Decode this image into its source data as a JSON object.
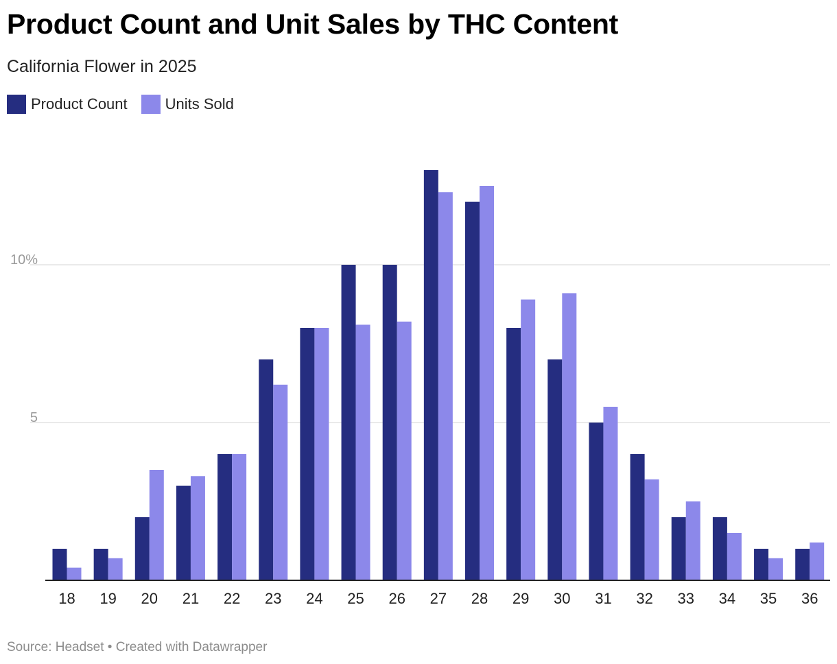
{
  "header": {
    "title": "Product Count and Unit Sales by THC Content",
    "subtitle": "California Flower in 2025"
  },
  "legend": [
    {
      "label": "Product Count",
      "color": "#252d80"
    },
    {
      "label": "Units Sold",
      "color": "#8c88ea"
    }
  ],
  "footer": {
    "source": "Source: Headset • Created with Datawrapper"
  },
  "chart_data": {
    "type": "bar",
    "title": "Product Count and Unit Sales by THC Content",
    "subtitle": "California Flower in 2025",
    "xlabel": "",
    "ylabel": "",
    "categories": [
      "18",
      "19",
      "20",
      "21",
      "22",
      "23",
      "24",
      "25",
      "26",
      "27",
      "28",
      "29",
      "30",
      "31",
      "32",
      "33",
      "34",
      "35",
      "36"
    ],
    "series": [
      {
        "name": "Product Count",
        "color": "#252d80",
        "values": [
          1,
          1,
          2,
          3,
          4,
          7,
          8,
          10,
          10,
          13,
          12,
          8,
          7,
          5,
          4,
          2,
          2,
          1,
          1
        ]
      },
      {
        "name": "Units Sold",
        "color": "#8c88ea",
        "values": [
          0.4,
          0.7,
          3.5,
          3.3,
          4,
          6.2,
          8,
          8.1,
          8.2,
          12.3,
          12.5,
          8.9,
          9.1,
          5.5,
          3.2,
          2.5,
          1.5,
          0.7,
          1.2
        ]
      }
    ],
    "yticks": [
      {
        "value": 5,
        "label": "5"
      },
      {
        "value": 10,
        "label": "10%"
      }
    ],
    "ylim": [
      0,
      13
    ],
    "grid": true,
    "legend_position": "top-left"
  }
}
